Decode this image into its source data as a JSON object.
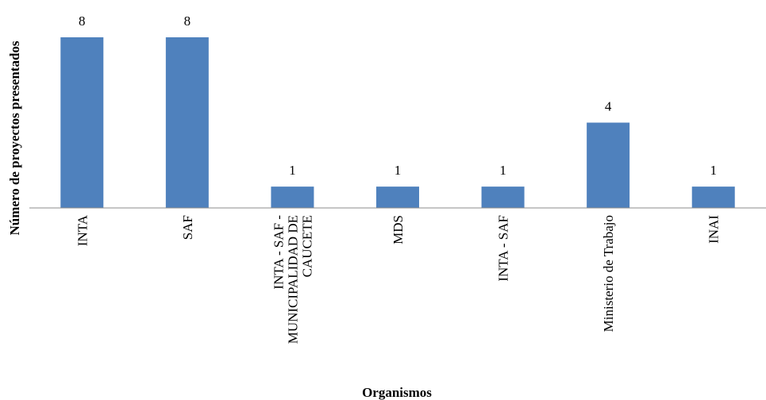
{
  "chart_data": {
    "type": "bar",
    "categories": [
      [
        "INTA"
      ],
      [
        "SAF"
      ],
      [
        "INTA - SAF -",
        "MUNICIPALIDAD DE",
        "CAUCETE"
      ],
      [
        "MDS"
      ],
      [
        "INTA - SAF"
      ],
      [
        "Ministerio de Trabajo"
      ],
      [
        "INAI"
      ]
    ],
    "values": [
      8,
      8,
      1,
      1,
      1,
      4,
      1
    ],
    "data_labels": [
      "8",
      "8",
      "1",
      "1",
      "1",
      "4",
      "1"
    ],
    "xlabel": "Organismos",
    "ylabel": "Número de proyectos presentados",
    "ylim": [
      0,
      8
    ],
    "grid": false,
    "legend": "none",
    "bar_color": "#4f81bd",
    "axis_color": "#8c8c8c"
  }
}
